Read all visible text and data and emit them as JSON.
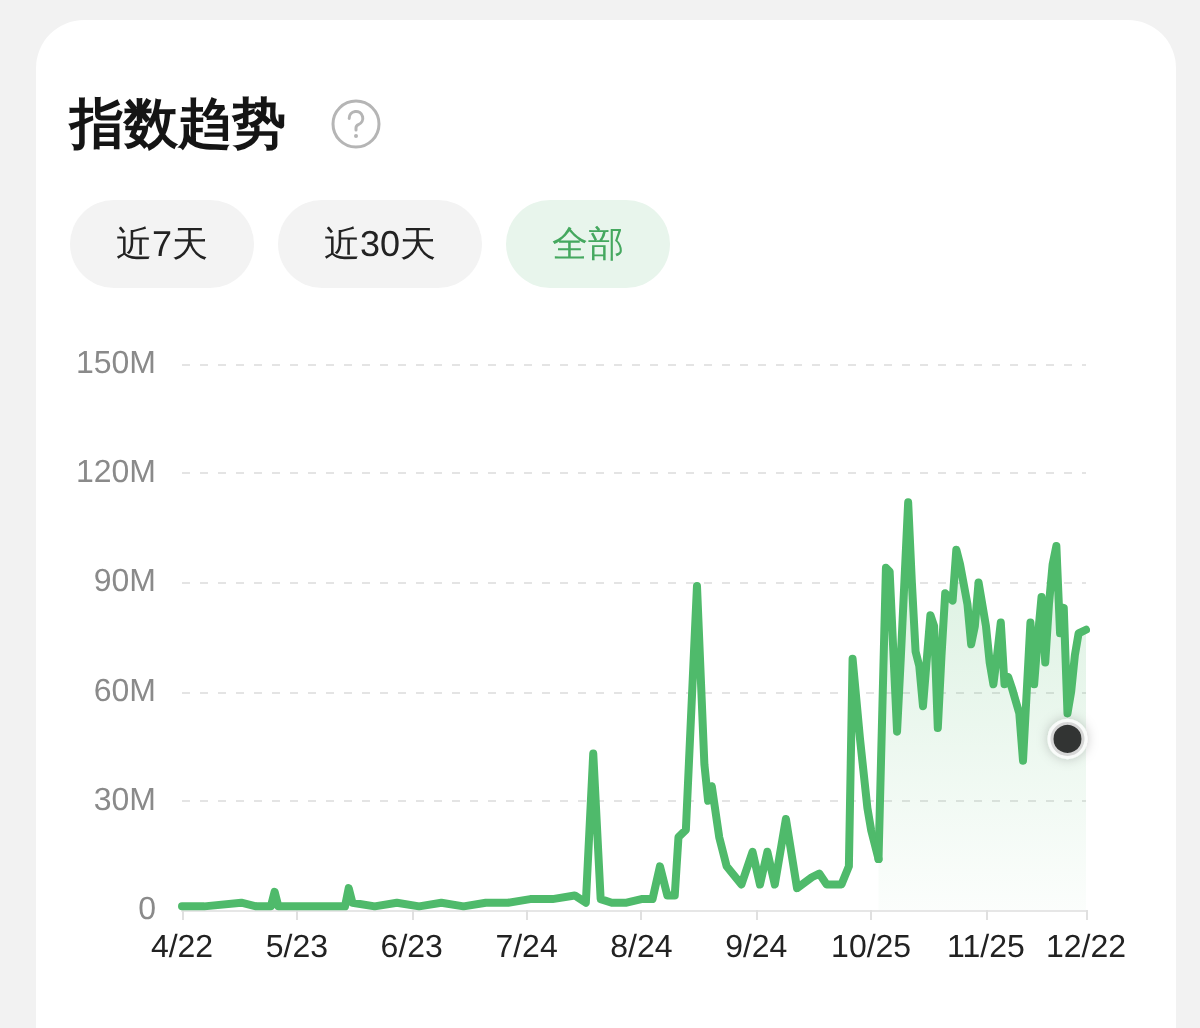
{
  "chart_data": {
    "type": "line",
    "title": "指数趋势",
    "annotations": [
      "近7天",
      "近30天",
      "全部"
    ],
    "marker": "none",
    "grid": "y",
    "xlim": [
      "--04-22",
      "--12-22"
    ],
    "xticks": [
      {
        "value": "--04-22",
        "label": "4/22"
      },
      {
        "value": "--05-23",
        "label": "5/23"
      },
      {
        "value": "--06-23",
        "label": "6/23"
      },
      {
        "value": "--07-24",
        "label": "7/24"
      },
      {
        "value": "--08-24",
        "label": "8/24"
      },
      {
        "value": "--09-24",
        "label": "9/24"
      },
      {
        "value": "--10-25",
        "label": "10/25"
      },
      {
        "value": "--11-25",
        "label": "11/25"
      },
      {
        "value": "--12-22",
        "label": "12/22"
      }
    ],
    "ylim": [
      0,
      150
    ],
    "yticks": [
      0,
      {
        "value": 30,
        "label": "30M"
      },
      {
        "value": 60,
        "label": "60M"
      },
      {
        "value": 90,
        "label": "90M"
      },
      {
        "value": 120,
        "label": "120M"
      },
      {
        "value": 150,
        "label": "150M"
      }
    ],
    "series": [
      {
        "color": "#4fba6b",
        "x": [
          "--04-22",
          "--04-28",
          "--05-08",
          "--05-12",
          "--05-16",
          "--05-17",
          "--05-18",
          "--05-24",
          "--05-30",
          "--06-05",
          "--06-06",
          "--06-07",
          "--06-13",
          "--06-19",
          "--06-25",
          "--07-01",
          "--07-07",
          "--07-13",
          "--07-19",
          "--07-25",
          "--07-31",
          "--08-06",
          "--08-09",
          "--08-11",
          "--08-13",
          "--08-16",
          "--08-20",
          "--08-24",
          "--08-27",
          "--08-29",
          "--08-31",
          "--09-02",
          "--09-03",
          "--09-05",
          "--09-08",
          "--09-10",
          "--09-11",
          "--09-12",
          "--09-14",
          "--09-16",
          "--09-20",
          "--09-23",
          "--09-25",
          "--09-27",
          "--09-29",
          "--10-02",
          "--10-05",
          "--10-09",
          "--10-11",
          "--10-13",
          "--10-17",
          "--10-19",
          "--10-20",
          "--10-22",
          "--10-24",
          "--10-25",
          "--10-27"
        ],
        "values": [
          1,
          1,
          2,
          1,
          1,
          5,
          1,
          1,
          1,
          1,
          6,
          2,
          1,
          2,
          1,
          2,
          1,
          2,
          2,
          3,
          3,
          4,
          2,
          43,
          3,
          2,
          2,
          3,
          3,
          12,
          4,
          4,
          20,
          22,
          89,
          40,
          30,
          34,
          20,
          12,
          7,
          16,
          7,
          16,
          7,
          25,
          6,
          9,
          10,
          7,
          7,
          12,
          69,
          47,
          28,
          22,
          14
        ]
      },
      {
        "type": "area",
        "color": "#4fba6b",
        "x": [
          "--10-27",
          "--10-29",
          "--10-30",
          "--11-01",
          "--11-02",
          "--11-04",
          "--11-05",
          "--11-06",
          "--11-07",
          "--11-08",
          "--11-10",
          "--11-11",
          "--11-12",
          "--11-13",
          "--11-14",
          "--11-16",
          "--11-17",
          "--11-18",
          "--11-20",
          "--11-21",
          "--11-22",
          "--11-23",
          "--11-25",
          "--11-26",
          "--11-27",
          "--11-28",
          "--11-29",
          "--11-30",
          "--12-01",
          "--12-02",
          "--12-04",
          "--12-05",
          "--12-06",
          "--12-07",
          "--12-08",
          "--12-09",
          "--12-10",
          "--12-11",
          "--12-12",
          "--12-13",
          "--12-14",
          "--12-15",
          "--12-16",
          "--12-17",
          "--12-18",
          "--12-19",
          "--12-20",
          "--12-22"
        ],
        "values": [
          14,
          94,
          93,
          49,
          69,
          112,
          90,
          71,
          67,
          56,
          81,
          78,
          50,
          70,
          87,
          85,
          99,
          95,
          84,
          73,
          78,
          90,
          78,
          68,
          62,
          70,
          79,
          62,
          64,
          61,
          54,
          41,
          60,
          79,
          62,
          75,
          86,
          68,
          84,
          95,
          100,
          76,
          83,
          54,
          60,
          70,
          76,
          77
        ]
      },
      {
        "type": "scatter",
        "color": "#111111",
        "marker": "circle",
        "x": [
          "--12-17"
        ],
        "values": [
          47
        ]
      }
    ]
  }
}
